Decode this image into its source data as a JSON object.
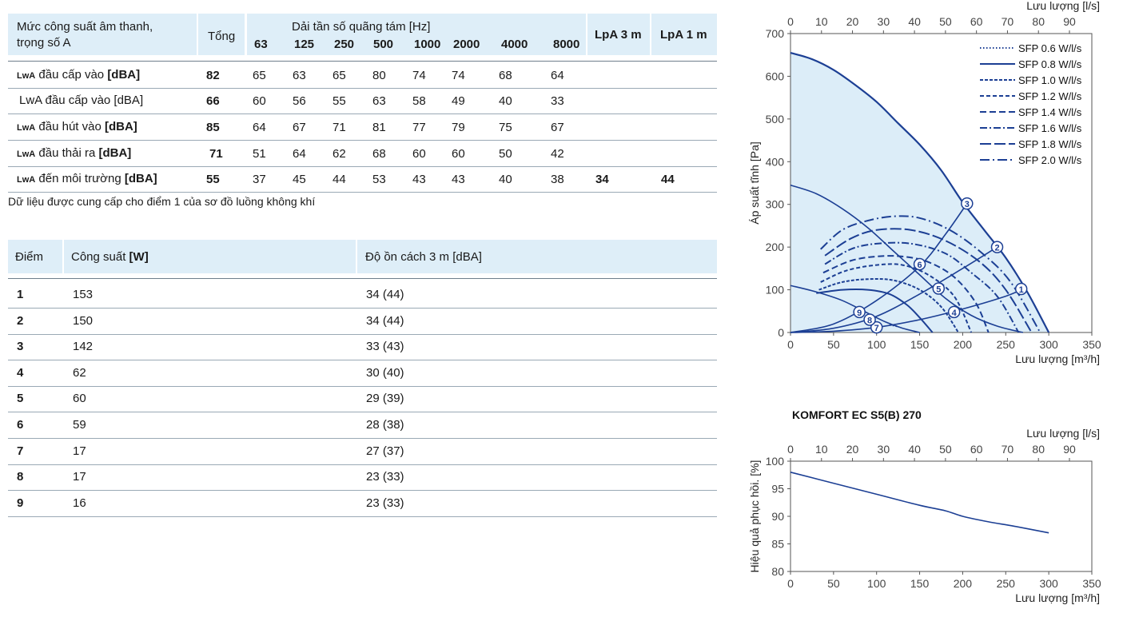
{
  "sound_table": {
    "header": {
      "row_label": "Mức công suất âm thanh, trọng số A",
      "row_label_line1": "Mức công suất âm thanh,",
      "row_label_line2": "trọng số A",
      "total": "Tổng",
      "band_title": "Dải tần số quãng tám [Hz]",
      "bands": [
        "63",
        "125",
        "250",
        "500",
        "1000",
        "2000",
        "4000",
        "8000"
      ],
      "lpa3": "LpA 3 m",
      "lpa1": "LpA 1 m"
    },
    "rows": [
      {
        "label_sub": "LwA",
        "label_rest": " đầu cấp vào ",
        "label_unit": "[dBA]",
        "total": "82",
        "values": [
          "65",
          "63",
          "65",
          "80",
          "74",
          "74",
          "68",
          "64"
        ],
        "lpa3": "",
        "lpa1": ""
      },
      {
        "label_sub": "",
        "label_rest": "LwA đầu cấp vào [dBA]",
        "label_unit": "",
        "total": "66",
        "values": [
          "60",
          "56",
          "55",
          "63",
          "58",
          "49",
          "40",
          "33"
        ],
        "lpa3": "",
        "lpa1": ""
      },
      {
        "label_sub": "LwA",
        "label_rest": " đầu hút vào ",
        "label_unit": "[dBA]",
        "total": "85",
        "values": [
          "64",
          "67",
          "71",
          "81",
          "77",
          "79",
          "75",
          "67"
        ],
        "lpa3": "",
        "lpa1": ""
      },
      {
        "label_sub": "LwA",
        "label_rest": " đầu thải ra ",
        "label_unit": "[dBA]",
        "total": "71",
        "values": [
          "51",
          "64",
          "62",
          "68",
          "60",
          "60",
          "50",
          "42"
        ],
        "lpa3": "",
        "lpa1": ""
      },
      {
        "label_sub": "LwA",
        "label_rest": " đến môi trường ",
        "label_unit": "[dBA]",
        "total": "55",
        "values": [
          "37",
          "45",
          "44",
          "53",
          "43",
          "43",
          "40",
          "38"
        ],
        "lpa3": "34",
        "lpa1": "44"
      }
    ],
    "note": "Dữ liệu được cung cấp cho điểm 1 của sơ đồ luồng không khí"
  },
  "points_table": {
    "headers": {
      "point": "Điểm",
      "power": "Công suất ",
      "power_unit": "[W]",
      "noise": "Độ ồn cách 3 m  [dBA]"
    },
    "rows": [
      {
        "point": "1",
        "power": "153",
        "noise": "34 (44)"
      },
      {
        "point": "2",
        "power": "150",
        "noise": "34 (44)"
      },
      {
        "point": "3",
        "power": "142",
        "noise": "33 (43)"
      },
      {
        "point": "4",
        "power": "62",
        "noise": "30 (40)"
      },
      {
        "point": "5",
        "power": "60",
        "noise": "29 (39)"
      },
      {
        "point": "6",
        "power": "59",
        "noise": "28 (38)"
      },
      {
        "point": "7",
        "power": "17",
        "noise": "27 (37)"
      },
      {
        "point": "8",
        "power": "17",
        "noise": "23 (33)"
      },
      {
        "point": "9",
        "power": "16",
        "noise": "23 (33)"
      }
    ]
  },
  "chart_data": [
    {
      "type": "line",
      "title": "KOMFORT EC S5(B) 270",
      "ylabel": "Áp suất tĩnh [Pa]",
      "xlabel": "Lưu lượng [m³/h]",
      "x2label": "Lưu lượng [l/s]",
      "xlim": [
        0,
        350
      ],
      "ylim": [
        0,
        700
      ],
      "x2lim": [
        0,
        97.2
      ],
      "xticks": [
        0,
        50,
        100,
        150,
        200,
        250,
        300,
        350
      ],
      "yticks": [
        0,
        100,
        200,
        300,
        400,
        500,
        600,
        700
      ],
      "x2ticks": [
        0,
        10,
        20,
        30,
        40,
        50,
        60,
        70,
        80,
        90
      ],
      "grid": false,
      "legend_position": "top-right",
      "fill_color": "#dcedf8",
      "line_color": "#1c3f94",
      "series": [
        {
          "name": "fan-max",
          "x": [
            0,
            25,
            50,
            75,
            100,
            125,
            150,
            175,
            200,
            225,
            250,
            275,
            300
          ],
          "y": [
            655,
            640,
            615,
            580,
            540,
            490,
            440,
            380,
            305,
            240,
            175,
            95,
            0
          ]
        },
        {
          "name": "fan-mid",
          "x": [
            0,
            30,
            60,
            90,
            120,
            150,
            180,
            210,
            240,
            270
          ],
          "y": [
            345,
            325,
            290,
            245,
            190,
            135,
            80,
            40,
            15,
            0
          ]
        },
        {
          "name": "fan-low",
          "x": [
            0,
            30,
            60,
            90,
            110,
            130,
            150
          ],
          "y": [
            110,
            95,
            75,
            45,
            25,
            10,
            0
          ]
        },
        {
          "name": "network-1",
          "x": [
            0,
            50,
            100,
            150,
            200,
            250,
            270
          ],
          "y": [
            0,
            3,
            12,
            30,
            55,
            85,
            102
          ]
        },
        {
          "name": "network-2",
          "x": [
            0,
            50,
            100,
            150,
            200,
            240
          ],
          "y": [
            0,
            10,
            38,
            90,
            150,
            200
          ]
        },
        {
          "name": "network-3",
          "x": [
            0,
            50,
            100,
            150,
            180,
            205
          ],
          "y": [
            0,
            20,
            75,
            155,
            230,
            302
          ]
        }
      ],
      "sfp_series": [
        {
          "name": "SFP 0.6 W/l/s",
          "dash": "1.5,2.5",
          "x": [
            115,
            120,
            125
          ],
          "y": [
            18,
            16,
            14
          ]
        },
        {
          "name": "SFP 0.8 W/l/s",
          "dash": "",
          "x": [
            30,
            60,
            90,
            115,
            135,
            150,
            165
          ],
          "y": [
            92,
            100,
            100,
            90,
            65,
            35,
            0
          ]
        },
        {
          "name": "SFP 1.0 W/l/s",
          "dash": "4,2",
          "x": [
            33,
            60,
            90,
            120,
            150,
            175,
            195
          ],
          "y": [
            100,
            118,
            125,
            122,
            100,
            60,
            0
          ]
        },
        {
          "name": "SFP 1.2 W/l/s",
          "dash": "5,3",
          "x": [
            35,
            65,
            100,
            130,
            160,
            190,
            210
          ],
          "y": [
            118,
            145,
            158,
            158,
            135,
            85,
            0
          ]
        },
        {
          "name": "SFP 1.4 W/l/s",
          "dash": "8,4",
          "x": [
            38,
            70,
            100,
            130,
            160,
            190,
            215,
            230
          ],
          "y": [
            140,
            168,
            178,
            178,
            165,
            130,
            70,
            0
          ]
        },
        {
          "name": "SFP 1.6 W/l/s",
          "dash": "9,3,2,3",
          "x": [
            40,
            70,
            100,
            140,
            180,
            210,
            240,
            265
          ],
          "y": [
            160,
            195,
            208,
            208,
            185,
            140,
            85,
            0
          ]
        },
        {
          "name": "SFP 1.8 W/l/s",
          "dash": "14,4",
          "x": [
            40,
            70,
            100,
            140,
            180,
            220,
            250,
            280
          ],
          "y": [
            180,
            220,
            240,
            240,
            215,
            165,
            100,
            0
          ]
        },
        {
          "name": "SFP 2.0 W/l/s",
          "dash": "12,4,2,4",
          "x": [
            35,
            60,
            90,
            120,
            150,
            185,
            220,
            255,
            290
          ],
          "y": [
            195,
            240,
            262,
            272,
            268,
            240,
            190,
            120,
            0
          ]
        }
      ],
      "points": [
        {
          "label": "1",
          "x": 268,
          "y": 102
        },
        {
          "label": "2",
          "x": 240,
          "y": 200
        },
        {
          "label": "3",
          "x": 205,
          "y": 302
        },
        {
          "label": "4",
          "x": 190,
          "y": 48
        },
        {
          "label": "5",
          "x": 172,
          "y": 103
        },
        {
          "label": "6",
          "x": 150,
          "y": 160
        },
        {
          "label": "7",
          "x": 100,
          "y": 12
        },
        {
          "label": "8",
          "x": 92,
          "y": 30
        },
        {
          "label": "9",
          "x": 80,
          "y": 48
        }
      ]
    },
    {
      "type": "line",
      "title": "KOMFORT EC S5(B) 270-E",
      "ylabel": "Hiệu quả phục hồi. [%]",
      "xlabel": "Lưu lượng [m³/h]",
      "x2label": "Lưu lượng [l/s]",
      "xlim": [
        0,
        350
      ],
      "ylim": [
        80,
        100
      ],
      "x2lim": [
        0,
        97.2
      ],
      "xticks": [
        0,
        50,
        100,
        150,
        200,
        250,
        300,
        350
      ],
      "yticks": [
        80,
        85,
        90,
        95,
        100
      ],
      "x2ticks": [
        0,
        10,
        20,
        30,
        40,
        50,
        60,
        70,
        80,
        90
      ],
      "grid": false,
      "series": [
        {
          "name": "efficiency",
          "x": [
            0,
            50,
            100,
            150,
            180,
            200,
            230,
            260,
            300
          ],
          "y": [
            98,
            96,
            94,
            92,
            91,
            90,
            89,
            88.2,
            87
          ]
        }
      ]
    }
  ],
  "colors": {
    "header_bg": "#deeef8",
    "line": "#1c3f94",
    "fill": "#dcedf8",
    "rule": "#9aa9b5"
  }
}
